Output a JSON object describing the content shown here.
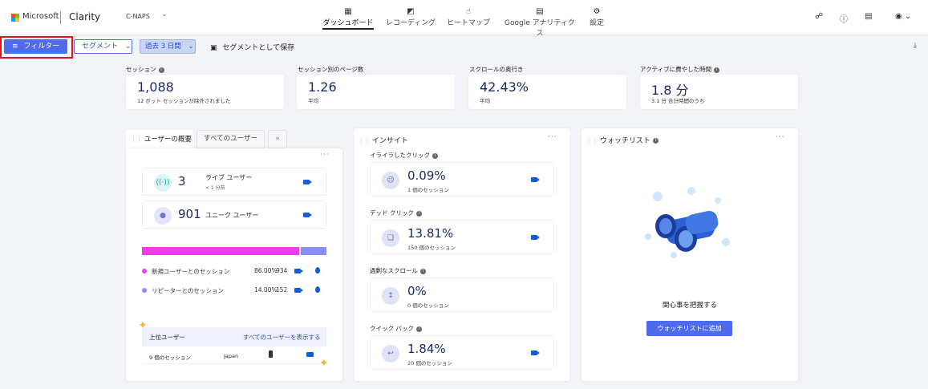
{
  "header": {
    "ms_text": "Microsoft",
    "app_name": "Clarity",
    "project": "C-NAPS",
    "nav": [
      {
        "label": "ダッシュボード",
        "icon": "dashboard-icon"
      },
      {
        "label": "レコーディング",
        "icon": "recordings-icon"
      },
      {
        "label": "ヒートマップ",
        "icon": "heatmap-icon"
      },
      {
        "label": "Google アナリティクス",
        "icon": "google-analytics-icon"
      },
      {
        "label": "設定",
        "icon": "settings-icon"
      }
    ]
  },
  "toolbar": {
    "filter_label": "フィルター",
    "segment_label": "セグメント",
    "date_label": "過去 3 日間",
    "save_segment_label": "セグメントとして保存"
  },
  "metrics": [
    {
      "label": "セッション",
      "value": "1,088",
      "sub": "12 ボット セッションが除外されました"
    },
    {
      "label": "セッション別のページ数",
      "value": "1.26",
      "sub": "平均"
    },
    {
      "label": "スクロールの奥行き",
      "value": "42.43%",
      "sub": "平均"
    },
    {
      "label": "アクティブに費やした時間",
      "value": "1.8 分",
      "sub": "3.1 分 合計時間のうち"
    }
  ],
  "users_panel": {
    "tab_overview": "ユーザーの概要",
    "tab_all": "すべてのユーザー",
    "live_count": "3",
    "live_label": "ライブ ユーザー",
    "live_sub": "< 1 分前",
    "unique_count": "901",
    "unique_label": "ユニーク ユーザー",
    "new_share": 0.86,
    "legend": [
      {
        "label": "新規ユーザーとのセッション",
        "pct": "86.00%",
        "count": "934",
        "color": "#e840e8"
      },
      {
        "label": "リピーターとのセッション",
        "pct": "14.00%",
        "count": "152",
        "color": "#8c8ff2"
      }
    ],
    "top_users_label": "上位ユーザー",
    "show_all_users": "すべてのユーザーを表示する",
    "top_row": {
      "sessions": "9 個のセッション",
      "country": "Japan"
    }
  },
  "insights_panel": {
    "title": "インサイト",
    "items": [
      {
        "label": "イライラしたクリック",
        "value": "0.09%",
        "sub": "1 個のセッション",
        "icon": "frustrated-face-icon"
      },
      {
        "label": "デッド クリック",
        "value": "13.81%",
        "sub": "150 個のセッション",
        "icon": "dead-click-icon"
      },
      {
        "label": "過剰なスクロール",
        "value": "0%",
        "sub": "0 個のセッション",
        "icon": "scroll-icon"
      },
      {
        "label": "クイック バック",
        "value": "1.84%",
        "sub": "20 個のセッション",
        "icon": "quick-back-icon"
      }
    ]
  },
  "watchlist_panel": {
    "title": "ウォッチリスト",
    "message": "関心事を把握する",
    "button_label": "ウォッチリストに追加"
  }
}
